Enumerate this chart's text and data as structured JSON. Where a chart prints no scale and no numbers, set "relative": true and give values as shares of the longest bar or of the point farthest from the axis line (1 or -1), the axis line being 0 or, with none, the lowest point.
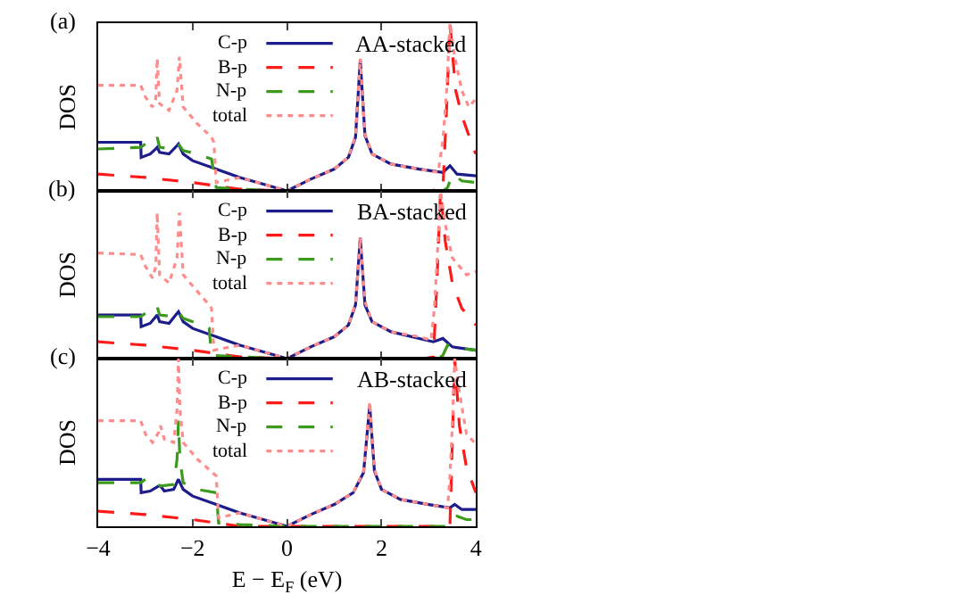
{
  "chart_data": [
    {
      "type": "line",
      "relative": true,
      "ylabel": "DOS",
      "annotations": [
        "(a)",
        "AA-stacked"
      ],
      "xlim": [
        -4,
        4
      ],
      "xticks": [
        -4,
        -2,
        0,
        2,
        4
      ],
      "tick_labels": false,
      "legend": "top",
      "marker": "none",
      "series": [
        {
          "name": "C-p",
          "color": "#1c1c8a",
          "line_style": "solid",
          "x": [
            -4,
            -3.1,
            -3.09,
            -2.9,
            -2.78,
            -2.75,
            -2.7,
            -2.5,
            -2.33,
            -2.3,
            -2.2,
            -2,
            -1.5,
            -1,
            -0.5,
            0,
            0.5,
            1,
            1.3,
            1.45,
            1.55,
            1.65,
            1.8,
            2.2,
            2.8,
            3.3,
            3.45,
            3.6,
            4
          ],
          "values": [
            0.29,
            0.29,
            0.2,
            0.22,
            0.25,
            0.26,
            0.23,
            0.22,
            0.27,
            0.28,
            0.22,
            0.18,
            0.13,
            0.08,
            0.04,
            0,
            0.07,
            0.13,
            0.2,
            0.32,
            0.78,
            0.33,
            0.22,
            0.16,
            0.13,
            0.11,
            0.15,
            0.1,
            0.09
          ]
        },
        {
          "name": "B-p",
          "color": "#ff1a1a",
          "line_style": "dashed",
          "x": [
            -4,
            -3,
            -2,
            -1.5,
            -1,
            0,
            3,
            3.3,
            3.38,
            3.45,
            3.57,
            3.7,
            3.95,
            4
          ],
          "values": [
            0.1,
            0.08,
            0.05,
            0.03,
            0.01,
            0,
            0,
            0.01,
            0.5,
            1,
            0.6,
            0.45,
            0.25,
            0.22
          ]
        },
        {
          "name": "N-p",
          "color": "#3c9a1c",
          "line_style": "dashed",
          "x": [
            -4,
            -3.1,
            -3,
            -2.8,
            -2.75,
            -2.7,
            -2.4,
            -2.3,
            -2.2,
            -1.9,
            -1.6,
            -1.5,
            -1,
            0,
            3.3,
            3.4,
            3.5,
            3.7,
            4
          ],
          "values": [
            0.25,
            0.26,
            0.28,
            0.28,
            0.32,
            0.26,
            0.25,
            0.28,
            0.24,
            0.22,
            0.19,
            0.02,
            0.01,
            0,
            0,
            0.02,
            0.1,
            0.06,
            0.05
          ]
        },
        {
          "name": "total",
          "color": "#ff8c8c",
          "line_style": "dotted",
          "x": [
            -4,
            -3.1,
            -3.0,
            -2.85,
            -2.78,
            -2.75,
            -2.7,
            -2.5,
            -2.33,
            -2.28,
            -2.2,
            -1.9,
            -1.6,
            -1.55,
            -1.5,
            -1,
            -0.5,
            0,
            0.5,
            1,
            1.3,
            1.45,
            1.55,
            1.65,
            1.8,
            2.2,
            2.8,
            3.2,
            3.3,
            3.38,
            3.45,
            3.55,
            3.7,
            3.85,
            4
          ],
          "values": [
            0.63,
            0.63,
            0.56,
            0.5,
            0.55,
            0.79,
            0.52,
            0.48,
            0.6,
            0.8,
            0.5,
            0.4,
            0.32,
            0.29,
            0.05,
            0.08,
            0.04,
            0,
            0.07,
            0.13,
            0.2,
            0.33,
            0.79,
            0.34,
            0.22,
            0.16,
            0.13,
            0.11,
            0.3,
            0.6,
            1,
            0.8,
            0.6,
            0.5,
            0.55
          ]
        }
      ]
    },
    {
      "type": "line",
      "relative": true,
      "ylabel": "DOS",
      "annotations": [
        "(b)",
        "BA-stacked"
      ],
      "xlim": [
        -4,
        4
      ],
      "xticks": [
        -4,
        -2,
        0,
        2,
        4
      ],
      "tick_labels": false,
      "legend": "top",
      "marker": "none",
      "series": [
        {
          "name": "C-p",
          "color": "#1c1c8a",
          "line_style": "solid",
          "x": [
            -4,
            -3.1,
            -3.09,
            -2.9,
            -2.78,
            -2.75,
            -2.7,
            -2.5,
            -2.33,
            -2.3,
            -2.2,
            -2,
            -1.5,
            -1,
            -0.5,
            0,
            0.5,
            1,
            1.3,
            1.45,
            1.55,
            1.65,
            1.8,
            2.2,
            2.8,
            3.1,
            3.3,
            3.5,
            4
          ],
          "values": [
            0.26,
            0.26,
            0.19,
            0.21,
            0.25,
            0.26,
            0.22,
            0.21,
            0.27,
            0.28,
            0.22,
            0.18,
            0.13,
            0.08,
            0.04,
            0,
            0.07,
            0.13,
            0.2,
            0.32,
            0.72,
            0.32,
            0.22,
            0.16,
            0.12,
            0.1,
            0.12,
            0.07,
            0.05
          ]
        },
        {
          "name": "B-p",
          "color": "#ff1a1a",
          "line_style": "dashed",
          "x": [
            -4,
            -3,
            -2,
            -1.5,
            -1,
            0,
            2.9,
            3.1,
            3.18,
            3.25,
            3.35,
            3.5,
            3.7,
            4
          ],
          "values": [
            0.1,
            0.08,
            0.05,
            0.03,
            0.01,
            0,
            0,
            0.01,
            0.5,
            1,
            0.7,
            0.45,
            0.3,
            0.2
          ]
        },
        {
          "name": "N-p",
          "color": "#3c9a1c",
          "line_style": "dashed",
          "x": [
            -4,
            -3.1,
            -3,
            -2.8,
            -2.75,
            -2.7,
            -2.4,
            -2.3,
            -2.2,
            -1.9,
            -1.65,
            -1.6,
            -1,
            0,
            3.2,
            3.3,
            3.4,
            3.7,
            4
          ],
          "values": [
            0.25,
            0.25,
            0.27,
            0.28,
            0.31,
            0.26,
            0.25,
            0.28,
            0.24,
            0.21,
            0.18,
            0.02,
            0.01,
            0,
            0,
            0.02,
            0.08,
            0.06,
            0.05
          ]
        },
        {
          "name": "total",
          "color": "#ff8c8c",
          "line_style": "dotted",
          "x": [
            -4,
            -3.1,
            -3.0,
            -2.85,
            -2.78,
            -2.75,
            -2.7,
            -2.5,
            -2.33,
            -2.28,
            -2.2,
            -1.9,
            -1.65,
            -1.6,
            -1.55,
            -1,
            -0.5,
            0,
            0.5,
            1,
            1.3,
            1.45,
            1.55,
            1.65,
            1.8,
            2.2,
            2.8,
            3.05,
            3.12,
            3.18,
            3.25,
            3.35,
            3.5,
            3.8,
            4
          ],
          "values": [
            0.63,
            0.62,
            0.55,
            0.48,
            0.55,
            0.87,
            0.5,
            0.45,
            0.6,
            0.87,
            0.5,
            0.4,
            0.32,
            0.3,
            0.05,
            0.08,
            0.04,
            0,
            0.07,
            0.13,
            0.2,
            0.33,
            0.72,
            0.34,
            0.22,
            0.16,
            0.13,
            0.11,
            0.3,
            0.6,
            1,
            0.8,
            0.6,
            0.5,
            0.52
          ]
        }
      ]
    },
    {
      "type": "line",
      "relative": true,
      "xlabel": "E − E$_{F}$ (eV)",
      "ylabel": "DOS",
      "annotations": [
        "(c)",
        "AB-stacked"
      ],
      "xlim": [
        -4,
        4
      ],
      "xticks": [
        -4,
        -2,
        0,
        2,
        4
      ],
      "tick_labels": "x",
      "legend": "top",
      "marker": "none",
      "series": [
        {
          "name": "C-p",
          "color": "#1c1c8a",
          "line_style": "solid",
          "x": [
            -4,
            -3.1,
            -3.09,
            -2.9,
            -2.72,
            -2.68,
            -2.6,
            -2.4,
            -2.32,
            -2.3,
            -2.2,
            -2,
            -1.5,
            -1,
            -0.5,
            0,
            0.5,
            1,
            1.4,
            1.62,
            1.75,
            1.85,
            2,
            2.4,
            3,
            3.45,
            3.55,
            3.7,
            4
          ],
          "values": [
            0.28,
            0.28,
            0.2,
            0.21,
            0.24,
            0.24,
            0.21,
            0.22,
            0.27,
            0.28,
            0.22,
            0.18,
            0.13,
            0.08,
            0.04,
            0,
            0.07,
            0.13,
            0.2,
            0.32,
            0.72,
            0.33,
            0.22,
            0.16,
            0.13,
            0.11,
            0.13,
            0.1,
            0.1
          ]
        },
        {
          "name": "B-p",
          "color": "#ff1a1a",
          "line_style": "dashed",
          "x": [
            -4,
            -3,
            -2,
            -1.5,
            -1,
            0,
            3.3,
            3.45,
            3.5,
            3.55,
            3.65,
            3.8,
            4
          ],
          "values": [
            0.09,
            0.07,
            0.04,
            0.02,
            0,
            0,
            0,
            0.01,
            0.5,
            1,
            0.6,
            0.35,
            0.2
          ]
        },
        {
          "name": "N-p",
          "color": "#3c9a1c",
          "line_style": "dashed",
          "x": [
            -4,
            -3.1,
            -3,
            -2.8,
            -2.72,
            -2.68,
            -2.4,
            -2.33,
            -2.3,
            -2.27,
            -2.2,
            -1.9,
            -1.5,
            -1.45,
            -1,
            0,
            3.45,
            3.5,
            3.6,
            3.8,
            4
          ],
          "values": [
            0.26,
            0.26,
            0.28,
            0.28,
            0.25,
            0.24,
            0.25,
            0.4,
            0.63,
            0.4,
            0.26,
            0.22,
            0.2,
            0.02,
            0.01,
            0,
            0,
            0.02,
            0.06,
            0.04,
            0.04
          ]
        },
        {
          "name": "total",
          "color": "#ff8c8c",
          "line_style": "dotted",
          "x": [
            -4,
            -3.1,
            -3.0,
            -2.85,
            -2.72,
            -2.68,
            -2.6,
            -2.4,
            -2.33,
            -2.3,
            -2.27,
            -2.2,
            -1.9,
            -1.5,
            -1.45,
            -1,
            -0.5,
            0,
            0.5,
            1,
            1.4,
            1.62,
            1.75,
            1.85,
            2,
            2.4,
            3,
            3.4,
            3.45,
            3.5,
            3.55,
            3.65,
            3.8,
            4
          ],
          "values": [
            0.63,
            0.63,
            0.55,
            0.5,
            0.56,
            0.6,
            0.52,
            0.5,
            0.7,
            1,
            0.7,
            0.5,
            0.4,
            0.3,
            0.05,
            0.08,
            0.04,
            0,
            0.07,
            0.13,
            0.2,
            0.33,
            0.74,
            0.34,
            0.22,
            0.16,
            0.13,
            0.11,
            0.3,
            0.6,
            1,
            0.8,
            0.55,
            0.49
          ]
        }
      ]
    }
  ]
}
